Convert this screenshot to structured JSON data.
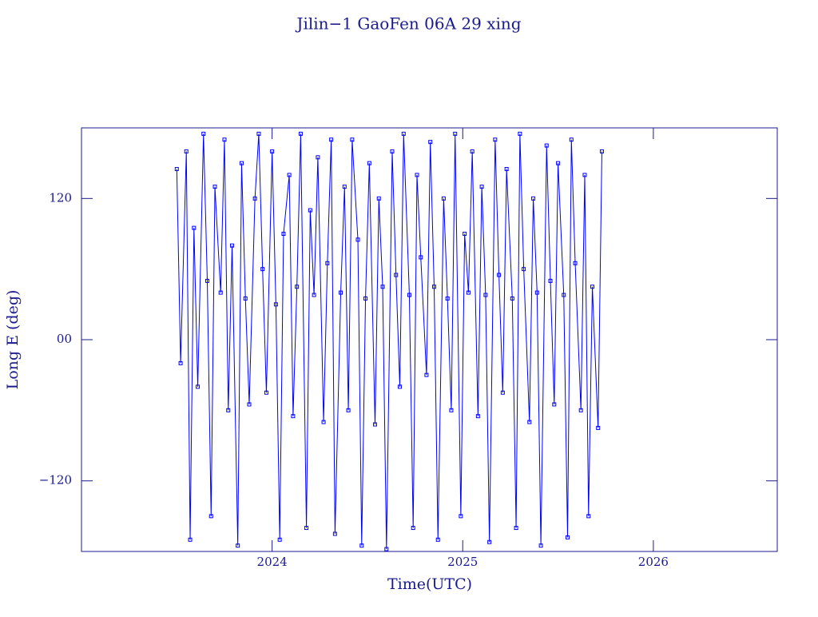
{
  "chart_data": {
    "type": "line",
    "title": "Jilin−1 GaoFen 06A 29 xing",
    "xlabel": "Time(UTC)",
    "ylabel": "Long E (deg)",
    "xlim": [
      2023.0,
      2026.65
    ],
    "xticks": [
      2024,
      2025,
      2026
    ],
    "ylim": [
      -180,
      180
    ],
    "yticks": [
      120,
      {
        "value": 0,
        "label": "00"
      },
      {
        "value": -120,
        "label": "−120"
      }
    ],
    "series": [
      {
        "color": "#0000ff",
        "x": [
          2023.5,
          2023.52,
          2023.55,
          2023.57,
          2023.59,
          2023.61,
          2023.64,
          2023.66,
          2023.68,
          2023.7,
          2023.73,
          2023.75,
          2023.77,
          2023.79,
          2023.82,
          2023.84,
          2023.86,
          2023.88,
          2023.91,
          2023.93,
          2023.95,
          2023.97,
          2024.0,
          2024.02,
          2024.04,
          2024.06,
          2024.09,
          2024.11,
          2024.13,
          2024.15,
          2024.18,
          2024.2,
          2024.22,
          2024.24,
          2024.27,
          2024.29,
          2024.31,
          2024.33,
          2024.36,
          2024.38,
          2024.4,
          2024.42,
          2024.45,
          2024.47,
          2024.49,
          2024.51,
          2024.54,
          2024.56,
          2024.58,
          2024.6,
          2024.63,
          2024.65,
          2024.67,
          2024.69,
          2024.72,
          2024.74,
          2024.76,
          2024.78,
          2024.81,
          2024.83,
          2024.85,
          2024.87,
          2024.9,
          2024.92,
          2024.94,
          2024.96,
          2024.99,
          2025.01,
          2025.03,
          2025.05,
          2025.08,
          2025.1,
          2025.12,
          2025.14,
          2025.17,
          2025.19,
          2025.21,
          2025.23,
          2025.26,
          2025.28,
          2025.3,
          2025.32,
          2025.35,
          2025.37,
          2025.39,
          2025.41,
          2025.44,
          2025.46,
          2025.48,
          2025.5,
          2025.53,
          2025.55,
          2025.57,
          2025.59,
          2025.62,
          2025.64,
          2025.66,
          2025.68,
          2025.71,
          2025.73
        ],
        "values": [
          145,
          -20,
          160,
          -170,
          95,
          -40,
          175,
          50,
          -150,
          130,
          40,
          170,
          -60,
          80,
          -175,
          150,
          35,
          -55,
          120,
          175,
          60,
          -45,
          160,
          30,
          -170,
          90,
          140,
          -65,
          45,
          175,
          -160,
          110,
          38,
          155,
          -70,
          65,
          170,
          -165,
          40,
          130,
          -60,
          170,
          85,
          -175,
          35,
          150,
          -72,
          120,
          45,
          -178,
          160,
          55,
          -40,
          175,
          38,
          -160,
          140,
          70,
          -30,
          168,
          45,
          -170,
          120,
          35,
          -60,
          175,
          -150,
          90,
          40,
          160,
          -65,
          130,
          38,
          -172,
          170,
          55,
          -45,
          145,
          35,
          -160,
          175,
          60,
          -70,
          120,
          40,
          -175,
          165,
          50,
          -55,
          150,
          38,
          -168,
          170,
          65,
          -60,
          140,
          -150,
          45,
          -75,
          160
        ]
      }
    ]
  }
}
